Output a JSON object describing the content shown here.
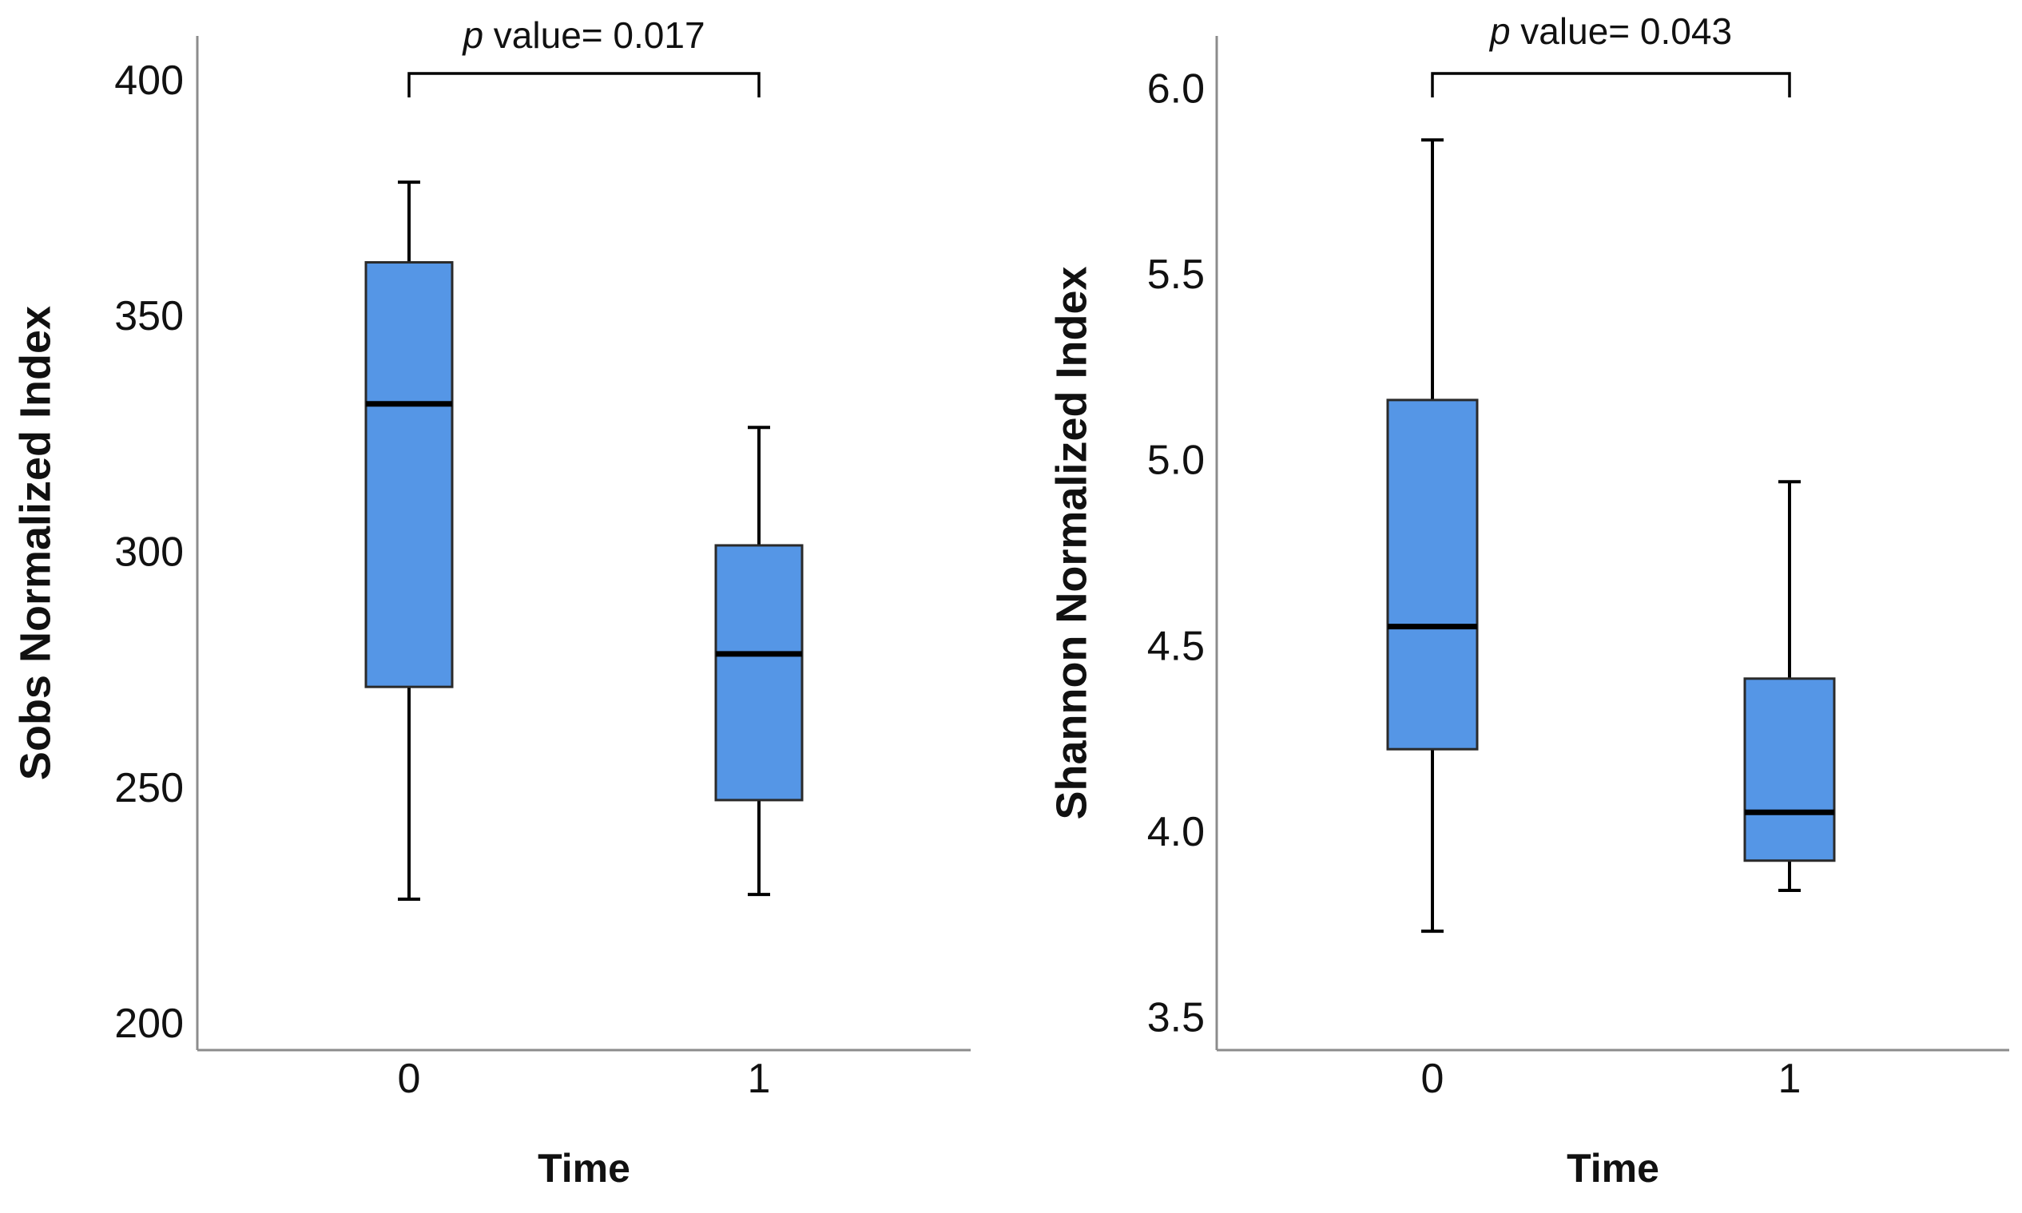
{
  "chart_data": [
    {
      "type": "box",
      "ylabel": "Sobs Normalized Index",
      "xlabel": "Time",
      "categories": [
        "0",
        "1"
      ],
      "ylim": [
        195,
        410
      ],
      "yticks": [
        200,
        250,
        300,
        350,
        400
      ],
      "ytick_labels": [
        "200",
        "250",
        "300",
        "350",
        "400"
      ],
      "boxes": [
        {
          "category": "0",
          "min": 227,
          "q1": 272,
          "median": 332,
          "q3": 362,
          "max": 379
        },
        {
          "category": "1",
          "min": 228,
          "q1": 248,
          "median": 279,
          "q3": 302,
          "max": 327
        }
      ],
      "annotation": {
        "prefix": "p",
        "text": " value= 0.017"
      }
    },
    {
      "type": "box",
      "ylabel": "Shannon Normalized Index",
      "xlabel": "Time",
      "categories": [
        "0",
        "1"
      ],
      "ylim": [
        3.42,
        6.15
      ],
      "yticks": [
        3.5,
        4.0,
        4.5,
        5.0,
        5.5,
        6.0
      ],
      "ytick_labels": [
        "3.5",
        "4.0",
        "4.5",
        "5.0",
        "5.5",
        "6.0"
      ],
      "boxes": [
        {
          "category": "0",
          "min": 3.74,
          "q1": 4.23,
          "median": 4.56,
          "q3": 5.17,
          "max": 5.87
        },
        {
          "category": "1",
          "min": 3.85,
          "q1": 3.93,
          "median": 4.06,
          "q3": 4.42,
          "max": 4.95
        }
      ],
      "annotation": {
        "prefix": "p",
        "text": " value= 0.043"
      }
    }
  ],
  "colors": {
    "box_fill": "#5596e6",
    "axis": "#8c8c8c"
  }
}
